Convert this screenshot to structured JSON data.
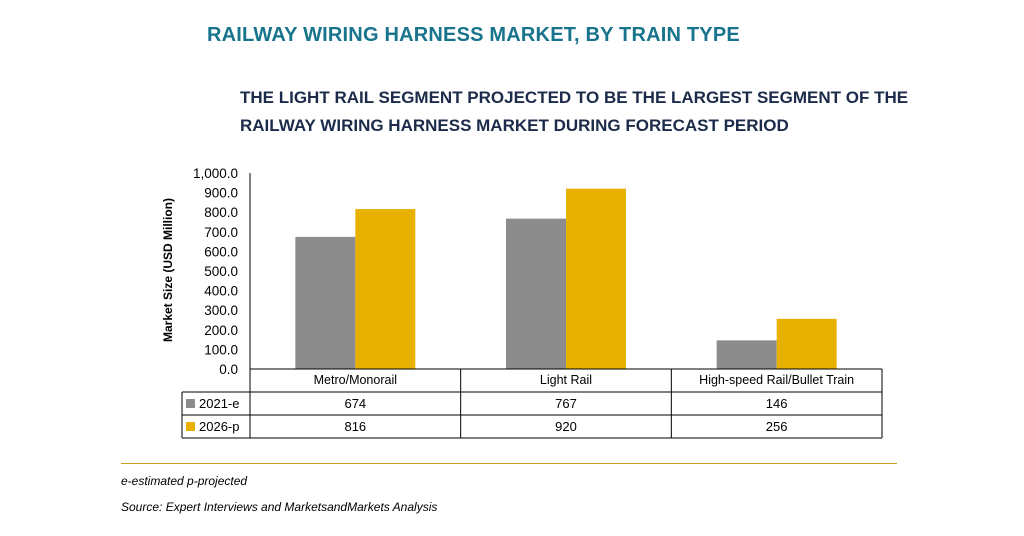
{
  "header": {
    "title": "RAILWAY WIRING HARNESS MARKET, BY TRAIN TYPE",
    "subtitle_line1": "THE LIGHT RAIL SEGMENT PROJECTED TO BE THE LARGEST SEGMENT OF THE",
    "subtitle_line2": "RAILWAY WIRING HARNESS MARKET DURING FORECAST PERIOD"
  },
  "chart_data": {
    "type": "bar",
    "ylabel": "Market Size (USD Million)",
    "ylim": [
      0,
      1000
    ],
    "yticks": [
      "0.0",
      "100.0",
      "200.0",
      "300.0",
      "400.0",
      "500.0",
      "600.0",
      "700.0",
      "800.0",
      "900.0",
      "1,000.0"
    ],
    "grid": false,
    "categories": [
      "Metro/Monorail",
      "Light Rail",
      "High-speed Rail/Bullet Train"
    ],
    "series": [
      {
        "name": "2021-e",
        "color": "#8c8c8c",
        "values": [
          674,
          767,
          146
        ],
        "labels": [
          "674",
          "767",
          "146"
        ]
      },
      {
        "name": "2026-p",
        "color": "#e8b000",
        "values": [
          816,
          920,
          256
        ],
        "labels": [
          "816",
          "920",
          "256"
        ]
      }
    ],
    "legend_placement": "data-table-rows"
  },
  "footer": {
    "note": "e-estimated p-projected",
    "source": "Source: Expert Interviews and MarketsandMarkets Analysis",
    "divider_color": "#c8a126"
  }
}
